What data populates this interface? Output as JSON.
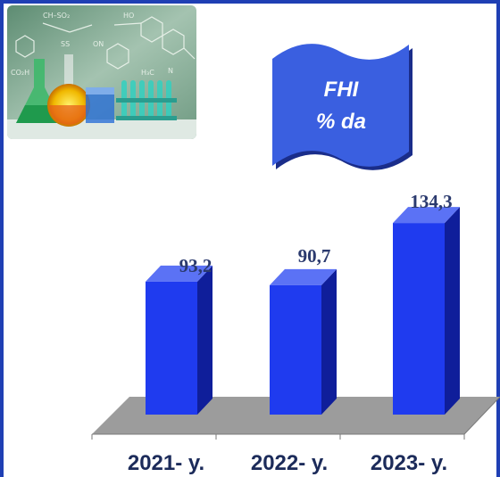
{
  "banner": {
    "line1": "FHI",
    "line2": "% da"
  },
  "chart_data": {
    "type": "bar",
    "categories": [
      "2021- y.",
      "2022- y.",
      "2023- y."
    ],
    "values": [
      93.2,
      90.7,
      134.3
    ],
    "value_labels": [
      "93,2",
      "90,7",
      "134,3"
    ],
    "title": "",
    "xlabel": "",
    "ylabel": "",
    "ylim": [
      0,
      150
    ],
    "grid": false,
    "legend": "none"
  },
  "colors": {
    "bar_front": "#1f3bef",
    "bar_side": "#0f1e9a",
    "bar_top": "#5b72f5",
    "floor": "#9c9c9c",
    "banner": "#3a5fe0",
    "frame": "#1f3fb4"
  },
  "photo": {
    "icon": "chemistry-glassware-photo"
  }
}
